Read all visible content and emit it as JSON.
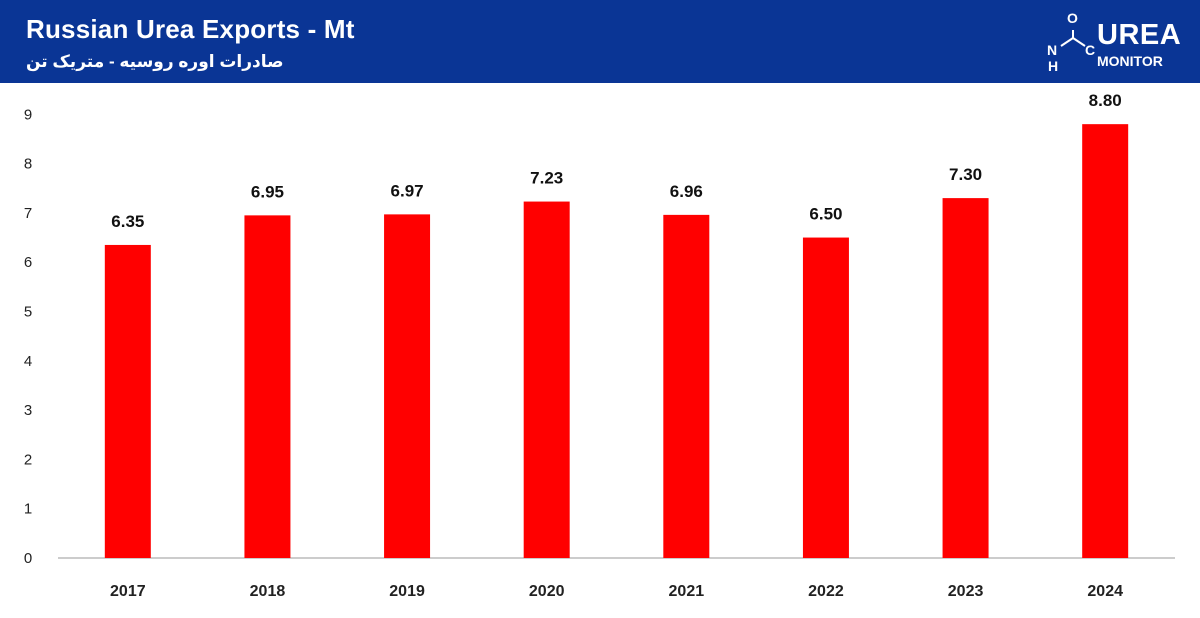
{
  "header": {
    "title": "Russian Urea Exports - Mt",
    "subtitle": "صادرات اوره روسیه - متریک تن"
  },
  "logo": {
    "word": "UREA",
    "sub": "MONITOR",
    "letter_o": "O",
    "letter_n": "N",
    "letter_h": "H",
    "letter_c": "C"
  },
  "colors": {
    "header_bg": "#0a3595",
    "bar": "#ff0000",
    "axis": "#999999"
  },
  "chart_data": {
    "type": "bar",
    "title": "Russian Urea Exports - Mt",
    "categories": [
      "2017",
      "2018",
      "2019",
      "2020",
      "2021",
      "2022",
      "2023",
      "2024"
    ],
    "values": [
      6.35,
      6.95,
      6.97,
      7.23,
      6.96,
      6.5,
      7.3,
      8.8
    ],
    "value_labels": [
      "6.35",
      "6.95",
      "6.97",
      "7.23",
      "6.96",
      "6.50",
      "7.30",
      "8.80"
    ],
    "yticks": [
      "0",
      "1",
      "2",
      "3",
      "4",
      "5",
      "6",
      "7",
      "8",
      "9"
    ],
    "ylim": [
      0,
      9
    ],
    "xlabel": "",
    "ylabel": "",
    "grid": false
  }
}
